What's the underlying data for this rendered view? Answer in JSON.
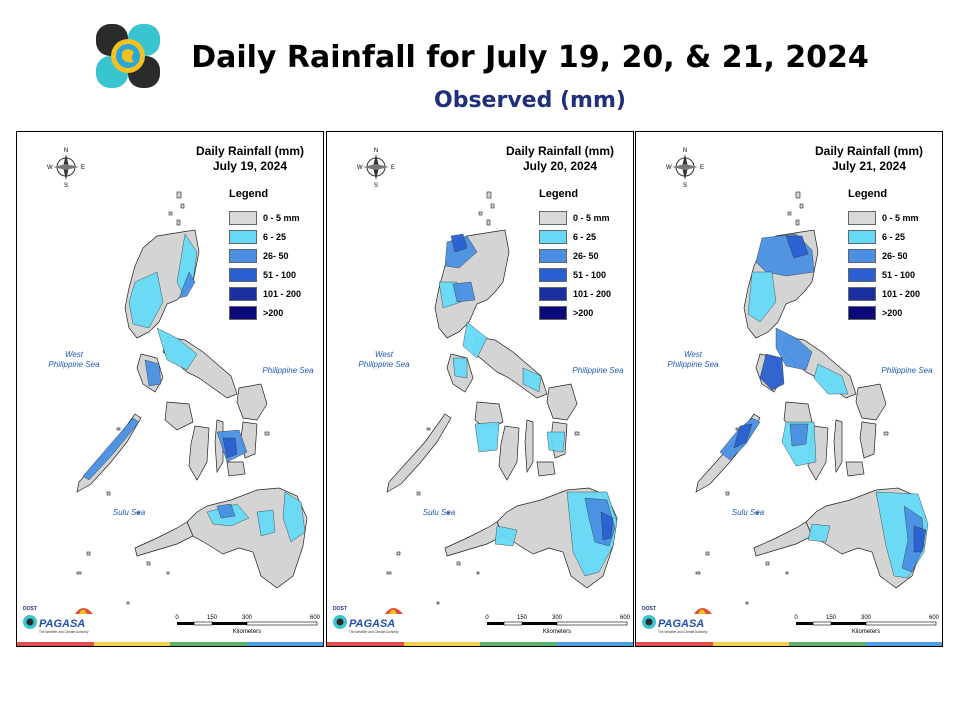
{
  "header": {
    "title": "Daily Rainfall for July 19, 20, & 21, 2024",
    "subtitle": "Observed (mm)"
  },
  "legend": {
    "title": "Legend",
    "items": [
      {
        "label": "0 - 5 mm",
        "color": "#d9d9d9"
      },
      {
        "label": "6 - 25",
        "color": "#66d9f7"
      },
      {
        "label": "26- 50",
        "color": "#4a90e2"
      },
      {
        "label": "51 - 100",
        "color": "#2a5fd1"
      },
      {
        "label": "101 - 200",
        "color": "#1a2fa0"
      },
      {
        "label": ">200",
        "color": "#0a0a7a"
      }
    ]
  },
  "labels": {
    "west_sea": "West\nPhilippine Sea",
    "east_sea": "Philippine Sea",
    "sulu_sea": "Sulu Sea",
    "scale_ticks": [
      "0",
      "150",
      "300",
      "600"
    ],
    "scale_unit": "Kilometers",
    "compass": {
      "n": "N",
      "s": "S",
      "e": "E",
      "w": "W"
    },
    "org": "PAGASA",
    "org_top": "DOST",
    "org_tagline": "The Weather and Climate Authority"
  },
  "panels": [
    {
      "title_line1": "Daily Rainfall (mm)",
      "title_line2": "July 19, 2024"
    },
    {
      "title_line1": "Daily Rainfall (mm)",
      "title_line2": "July 20, 2024"
    },
    {
      "title_line1": "Daily Rainfall (mm)",
      "title_line2": "July 21, 2024"
    }
  ],
  "stripe_colors": [
    "#e05050",
    "#f0d050",
    "#60b070",
    "#50a0e0"
  ]
}
